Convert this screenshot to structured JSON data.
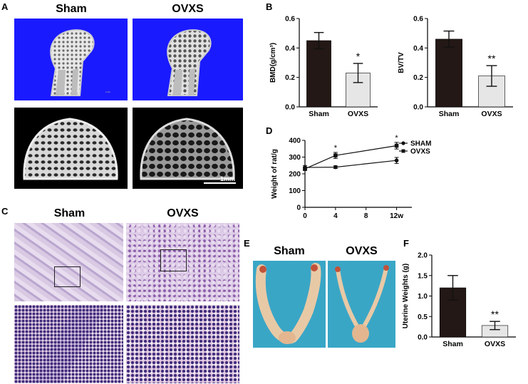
{
  "panels": {
    "A": {
      "letter": "A",
      "col_labels": [
        "Sham",
        "OVXS"
      ],
      "scale_bar": "1mm"
    },
    "B": {
      "letter": "B"
    },
    "C": {
      "letter": "C",
      "col_labels": [
        "Sham",
        "OVXS"
      ]
    },
    "D": {
      "letter": "D"
    },
    "E": {
      "letter": "E",
      "col_labels": [
        "Sham",
        "OVXS"
      ]
    },
    "F": {
      "letter": "F"
    }
  },
  "chart_data": [
    {
      "id": "B-left",
      "type": "bar",
      "categories": [
        "Sham",
        "OVXS"
      ],
      "values": [
        0.45,
        0.23
      ],
      "errors": [
        0.055,
        0.065
      ],
      "significance": [
        "",
        "*"
      ],
      "ylabel": "BMD(g/cm³)",
      "ylim": [
        0,
        0.6
      ],
      "yticks": [
        0.0,
        0.2,
        0.4,
        0.6
      ],
      "colors": [
        "#231815",
        "#e6e6e6"
      ]
    },
    {
      "id": "B-right",
      "type": "bar",
      "categories": [
        "Sham",
        "OVXS"
      ],
      "values": [
        0.46,
        0.21
      ],
      "errors": [
        0.055,
        0.07
      ],
      "significance": [
        "",
        "**"
      ],
      "ylabel": "BV/TV",
      "ylim": [
        0,
        0.6
      ],
      "yticks": [
        0.0,
        0.2,
        0.4,
        0.6
      ],
      "colors": [
        "#231815",
        "#e6e6e6"
      ]
    },
    {
      "id": "D",
      "type": "line",
      "x": [
        0,
        4,
        12
      ],
      "xticks": [
        "0",
        "4",
        "8",
        "12w"
      ],
      "xtick_values": [
        0,
        4,
        8,
        12
      ],
      "series": [
        {
          "name": "SHAM",
          "values": [
            238,
            240,
            280
          ],
          "errors": [
            12,
            8,
            18
          ],
          "marker": "circle"
        },
        {
          "name": "OVXS",
          "values": [
            230,
            310,
            368
          ],
          "errors": [
            10,
            18,
            20
          ],
          "marker": "square"
        }
      ],
      "significance": [
        {
          "x": 4,
          "mark": "*"
        },
        {
          "x": 12,
          "mark": "*"
        }
      ],
      "ylabel": "Weight of rat/g",
      "ylim": [
        0,
        400
      ],
      "yticks": [
        0,
        100,
        200,
        300,
        400
      ],
      "xlim": [
        0,
        14
      ],
      "legend": "top-right"
    },
    {
      "id": "F",
      "type": "bar",
      "categories": [
        "Sham",
        "OVXS"
      ],
      "values": [
        1.2,
        0.28
      ],
      "errors": [
        0.3,
        0.1
      ],
      "significance": [
        "",
        "**"
      ],
      "ylabel": "Uterine Weights (g)",
      "ylim": [
        0,
        2.0
      ],
      "yticks": [
        0.0,
        0.5,
        1.0,
        1.5,
        2.0
      ],
      "colors": [
        "#231815",
        "#e6e6e6"
      ]
    }
  ]
}
